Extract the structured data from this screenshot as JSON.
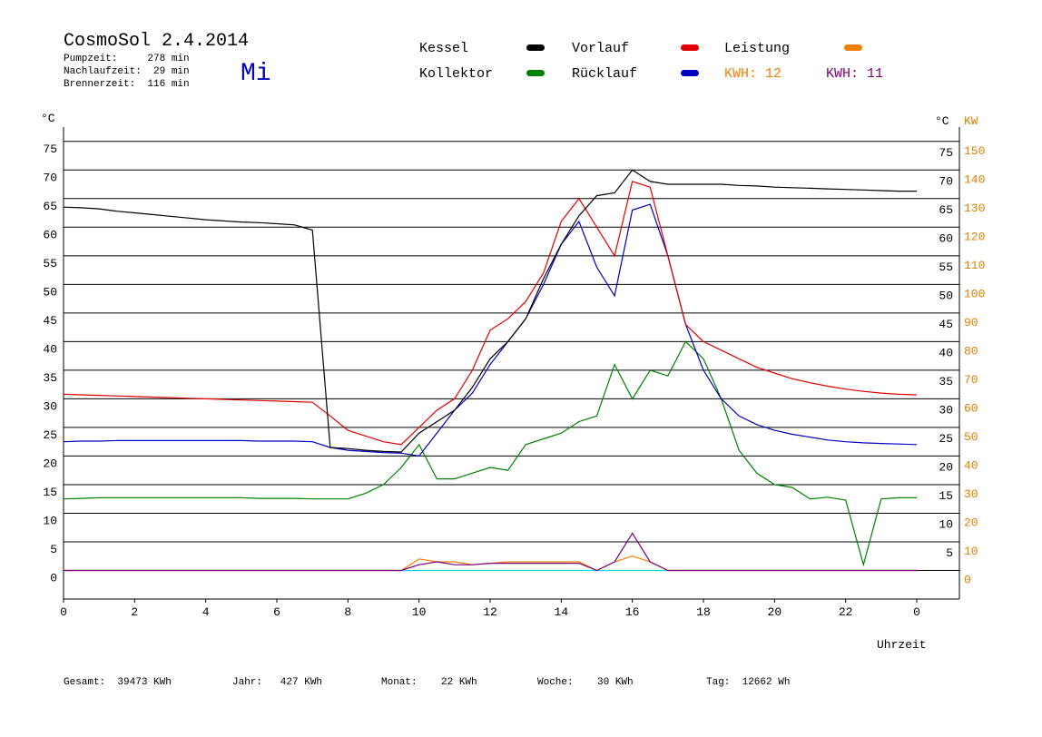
{
  "chart_data": {
    "type": "line",
    "title": "CosmoSol 2.4.2014",
    "info": [
      "Pumpzeit:     278 min",
      "Nachlaufzeit:  29 min",
      "Brennerzeit:  116 min"
    ],
    "day": "Mi",
    "ylabel": "°C",
    "y2label_left": "°C",
    "y2label": "KW",
    "xlabel": "Uhrzeit",
    "footer": [
      "Gesamt:  39473 KWh",
      "Jahr:   427 KWh",
      "Monat:    22 KWh",
      "Woche:    30 KWh",
      "Tag:  12662 Wh"
    ],
    "xlim": [
      0,
      24
    ],
    "xticks": [
      0,
      2,
      4,
      6,
      8,
      10,
      12,
      14,
      16,
      18,
      20,
      22,
      {
        "value": 24,
        "label": "0"
      }
    ],
    "ylim": [
      -5,
      77.5
    ],
    "yticks": [
      0,
      5,
      10,
      15,
      20,
      25,
      30,
      35,
      40,
      45,
      50,
      55,
      60,
      65,
      70,
      75
    ],
    "y2lim": [
      -10,
      155
    ],
    "y2ticks": [
      0,
      10,
      20,
      30,
      40,
      50,
      60,
      70,
      80,
      90,
      100,
      110,
      120,
      130,
      140,
      150
    ],
    "grid": true,
    "x": [
      0,
      0.5,
      1,
      1.5,
      2,
      2.5,
      3,
      3.5,
      4,
      4.5,
      5,
      5.5,
      6,
      6.5,
      7,
      7.5,
      8,
      8.5,
      9,
      9.5,
      10,
      10.5,
      11,
      11.5,
      12,
      12.5,
      13,
      13.5,
      14,
      14.5,
      15,
      15.5,
      16,
      16.5,
      17,
      17.5,
      18,
      18.5,
      19,
      19.5,
      20,
      20.5,
      21,
      21.5,
      22,
      22.5,
      23,
      23.5,
      24
    ],
    "series": [
      {
        "name": "Kessel",
        "color": "#000000",
        "values": [
          63.5,
          63.4,
          63.2,
          62.8,
          62.5,
          62.2,
          61.9,
          61.6,
          61.3,
          61.1,
          60.9,
          60.8,
          60.6,
          60.4,
          59.5,
          21.5,
          21.3,
          21,
          20.8,
          20.7,
          24,
          26,
          28,
          32,
          37,
          40,
          44,
          51,
          57,
          62,
          65.5,
          66,
          70,
          68,
          67.5,
          67.5,
          67.5,
          67.5,
          67.3,
          67.2,
          67,
          66.9,
          66.8,
          66.7,
          66.6,
          66.5,
          66.4,
          66.3,
          66.3
        ]
      },
      {
        "name": "Vorlauf",
        "color": "#e00000",
        "values": [
          30.8,
          30.7,
          30.6,
          30.5,
          30.4,
          30.3,
          30.2,
          30.1,
          30,
          29.9,
          29.8,
          29.7,
          29.6,
          29.5,
          29.4,
          27,
          24.5,
          23.5,
          22.5,
          22,
          25,
          28,
          30,
          35,
          42,
          44,
          47,
          52,
          61,
          65,
          60,
          55,
          68,
          67,
          55,
          43,
          40,
          38.5,
          37,
          35.5,
          34.5,
          33.5,
          32.8,
          32.2,
          31.7,
          31.3,
          31,
          30.8,
          30.7
        ]
      },
      {
        "name": "Leistung",
        "color": "#f08000",
        "axis": "y2",
        "total": "KWH: 12",
        "values": [
          0,
          0,
          0,
          0,
          0,
          0,
          0,
          0,
          0,
          0,
          0,
          0,
          0,
          0,
          0,
          0,
          0,
          0,
          0,
          0,
          4,
          3,
          3,
          2,
          2.5,
          3,
          3,
          3,
          3,
          3,
          0,
          3,
          5,
          3,
          0,
          0,
          0,
          0,
          0,
          0,
          0,
          0,
          0,
          0,
          0,
          0,
          0,
          0,
          0
        ]
      },
      {
        "name": "Kollektor",
        "color": "#008000",
        "values": [
          12.5,
          12.6,
          12.7,
          12.7,
          12.7,
          12.7,
          12.7,
          12.7,
          12.7,
          12.7,
          12.7,
          12.6,
          12.6,
          12.6,
          12.5,
          12.5,
          12.5,
          13.5,
          15,
          18,
          22,
          16,
          16,
          17,
          18,
          17.5,
          22,
          23,
          24,
          26,
          27,
          36,
          30,
          35,
          34,
          40,
          37,
          30,
          21,
          17,
          15,
          14.5,
          12.5,
          12.8,
          12.3,
          1,
          12.5,
          12.7,
          12.7
        ]
      },
      {
        "name": "Rücklauf",
        "color": "#0000c0",
        "values": [
          22.5,
          22.6,
          22.6,
          22.7,
          22.7,
          22.7,
          22.7,
          22.7,
          22.7,
          22.7,
          22.7,
          22.6,
          22.6,
          22.6,
          22.5,
          21.5,
          21,
          20.8,
          20.6,
          20.5,
          20,
          24,
          28,
          31,
          36,
          40,
          44,
          50,
          57,
          61,
          53,
          48,
          63,
          64,
          55,
          43,
          35,
          30,
          27,
          25.5,
          24.5,
          23.8,
          23.3,
          22.8,
          22.5,
          22.3,
          22.2,
          22.1,
          22
        ]
      },
      {
        "color": "#800080",
        "axis": "y2",
        "total": "KWH: 11",
        "values": [
          0,
          0,
          0,
          0,
          0,
          0,
          0,
          0,
          0,
          0,
          0,
          0,
          0,
          0,
          0,
          0,
          0,
          0,
          0,
          0,
          2,
          3,
          2,
          2,
          2.5,
          2.5,
          2.5,
          2.5,
          2.5,
          2.5,
          0,
          3,
          13,
          3,
          0,
          0,
          0,
          0,
          0,
          0,
          0,
          0,
          0,
          0,
          0,
          0,
          0,
          0,
          0
        ]
      },
      {
        "color": "#00e0e0",
        "values": [
          0,
          0,
          0,
          0,
          0,
          0,
          0,
          0,
          0,
          0,
          0,
          0,
          0,
          0,
          0,
          0,
          0,
          0,
          0,
          0,
          0,
          0,
          0,
          0,
          0,
          0,
          0,
          0,
          0,
          0,
          0,
          0,
          0,
          0,
          0,
          0,
          0,
          0,
          0,
          0,
          0,
          0,
          0,
          0,
          0,
          0,
          0,
          0,
          0
        ]
      }
    ]
  }
}
